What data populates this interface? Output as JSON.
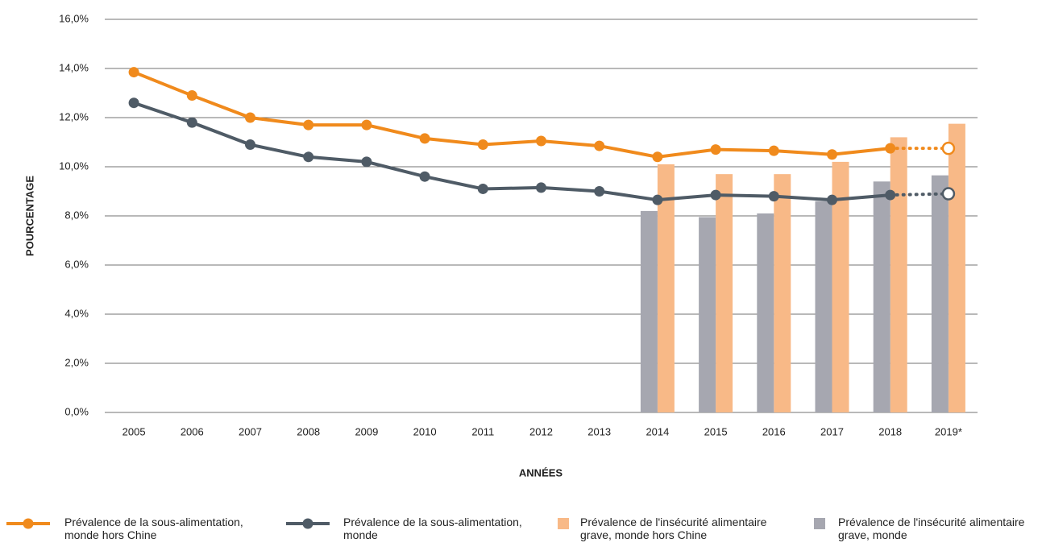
{
  "chart_data": {
    "type": "combo",
    "y_label": "POURCENTAGE",
    "x_label": "ANNÉES",
    "categories": [
      "2005",
      "2006",
      "2007",
      "2008",
      "2009",
      "2010",
      "2011",
      "2012",
      "2013",
      "2014",
      "2015",
      "2016",
      "2017",
      "2018",
      "2019*"
    ],
    "ylim": [
      0,
      16
    ],
    "yticks": [
      {
        "value": 0,
        "label": "0,0%"
      },
      {
        "value": 2,
        "label": "2,0%"
      },
      {
        "value": 4,
        "label": "4,0%"
      },
      {
        "value": 6,
        "label": "6,0%"
      },
      {
        "value": 8,
        "label": "8,0%"
      },
      {
        "value": 10,
        "label": "10,0%"
      },
      {
        "value": 12,
        "label": "12,0%"
      },
      {
        "value": 14,
        "label": "14,0%"
      },
      {
        "value": 16,
        "label": "16,0%"
      }
    ],
    "grid": true,
    "series": [
      {
        "name": "Prévalence de la sous-alimentation, monde hors Chine",
        "type": "line",
        "color": "#f08a1c",
        "values": [
          13.85,
          12.9,
          12.0,
          11.7,
          11.7,
          11.15,
          10.9,
          11.05,
          10.85,
          10.4,
          10.7,
          10.65,
          10.5,
          10.75,
          10.75
        ]
      },
      {
        "name": "Prévalence de la sous-alimentation, monde",
        "type": "line",
        "color": "#4f5b66",
        "values": [
          12.6,
          11.8,
          10.9,
          10.4,
          10.2,
          9.6,
          9.1,
          9.15,
          9.0,
          8.65,
          8.85,
          8.8,
          8.65,
          8.85,
          8.9
        ]
      },
      {
        "name": "Prévalence de l'insécurité alimentaire grave, monde hors Chine",
        "type": "bar",
        "color": "#f8b987",
        "values": [
          null,
          null,
          null,
          null,
          null,
          null,
          null,
          null,
          null,
          10.1,
          9.7,
          9.7,
          10.2,
          11.2,
          11.75
        ]
      },
      {
        "name": "Prévalence de l'insécurité alimentaire grave, monde",
        "type": "bar",
        "color": "#a6a7b0",
        "values": [
          null,
          null,
          null,
          null,
          null,
          null,
          null,
          null,
          null,
          8.2,
          7.95,
          8.1,
          8.6,
          9.4,
          9.65
        ]
      }
    ]
  }
}
